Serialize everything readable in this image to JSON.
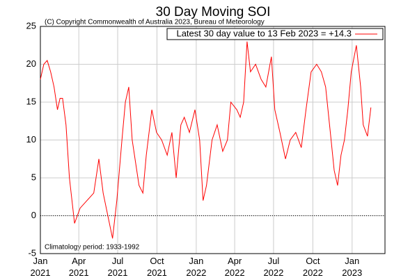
{
  "chart_data": {
    "type": "line",
    "title": "30 Day Moving SOI",
    "copyright": "(C) Copyright Commonwealth of Australia 2023, Bureau of Meteorology",
    "annotation": "Climatology period: 1933-1992",
    "x": [
      0,
      8,
      16,
      24,
      32,
      40,
      46,
      52,
      60,
      68,
      80,
      93,
      109,
      125,
      137,
      147,
      158,
      169,
      179,
      191,
      199,
      207,
      215,
      231,
      240,
      248,
      261,
      272,
      284,
      297,
      308,
      318,
      329,
      337,
      349,
      362,
      373,
      381,
      389,
      402,
      414,
      427,
      438,
      446,
      460,
      468,
      476,
      484,
      492,
      504,
      517,
      528,
      541,
      549,
      561,
      574,
      585,
      598,
      611,
      622,
      634,
      647,
      658,
      668,
      679,
      688,
      696,
      704,
      712,
      720,
      728,
      740,
      750,
      756,
      766,
      774
    ],
    "series": [
      {
        "name": "Latest 30 day value to 13 Feb 2023 = +14.3",
        "color": "#ff0000",
        "values": [
          18,
          20,
          20.5,
          19,
          17,
          14,
          15.5,
          15.5,
          12,
          5,
          -1,
          1,
          2,
          3,
          7.5,
          3,
          0,
          -3,
          2,
          10,
          15,
          17,
          10,
          4,
          3,
          8,
          14,
          11,
          10,
          8,
          11,
          5,
          12,
          13,
          11,
          14,
          10,
          2,
          4,
          10,
          12,
          8.5,
          10,
          15,
          14,
          13,
          15,
          23,
          19,
          20,
          18,
          17,
          21,
          14,
          11,
          7.5,
          10,
          11,
          9,
          14,
          19,
          20,
          19,
          17,
          11,
          6,
          4,
          8,
          10,
          14,
          19,
          22.5,
          17,
          12,
          10.5,
          14.3
        ]
      }
    ],
    "xlim": [
      0,
      807
    ],
    "xticks": [
      {
        "value": 0,
        "label": "Jan 2021"
      },
      {
        "value": 90,
        "label": "Apr 2021"
      },
      {
        "value": 181,
        "label": "Jul 2021"
      },
      {
        "value": 273,
        "label": "Oct 2021"
      },
      {
        "value": 365,
        "label": "Jan 2022"
      },
      {
        "value": 455,
        "label": "Apr 2022"
      },
      {
        "value": 546,
        "label": "Jul 2022"
      },
      {
        "value": 638,
        "label": "Oct 2022"
      },
      {
        "value": 730,
        "label": "Jan 2023"
      }
    ],
    "ylim": [
      -5,
      25
    ],
    "yticks": [
      -5,
      0,
      5,
      10,
      15,
      20,
      25
    ],
    "grid": true,
    "legend": "top-right"
  }
}
